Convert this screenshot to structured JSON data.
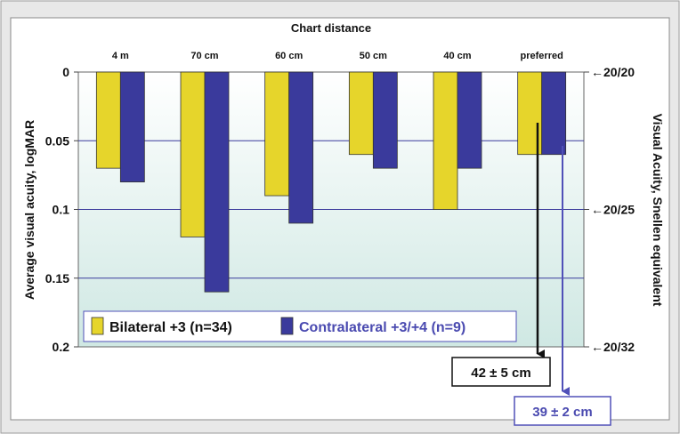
{
  "chart_data": {
    "type": "bar",
    "title": "Chart distance",
    "categories": [
      "4 m",
      "70 cm",
      "60 cm",
      "50 cm",
      "40 cm",
      "preferred"
    ],
    "series": [
      {
        "name": "Bilateral +3 (n=34)",
        "color": "#e6d52b",
        "values": [
          0.07,
          0.12,
          0.09,
          0.06,
          0.1,
          0.06
        ]
      },
      {
        "name": "Contralateral +3/+4 (n=9)",
        "color": "#3a3a9c",
        "values": [
          0.08,
          0.16,
          0.11,
          0.07,
          0.07,
          0.06
        ]
      }
    ],
    "ylabel": "Average visual acuity, logMAR",
    "y2label": "Visual Acuity, Snellen equivalent",
    "ylim": [
      0,
      0.2
    ],
    "y_inverted": true,
    "yticks": [
      "0",
      "0.05",
      "0.1",
      "0.15",
      "0.2"
    ],
    "y2ticks": [
      {
        "label": "←20/20",
        "value": 0
      },
      {
        "label": "←20/25",
        "value": 0.1
      },
      {
        "label": "←20/32",
        "value": 0.2
      }
    ],
    "legend_position": "bottom-left",
    "grid": true,
    "annotations": [
      {
        "text": "42 ± 5 cm",
        "color": "#111111"
      },
      {
        "text": "39 ± 2 cm",
        "color": "#4a4ab0"
      }
    ],
    "colors": {
      "plot_bg_top": "#ffffff",
      "plot_bg_bottom": "#cfe8e3",
      "grid": "#3a3a9c",
      "page_bg": "#e7e7e7"
    }
  }
}
